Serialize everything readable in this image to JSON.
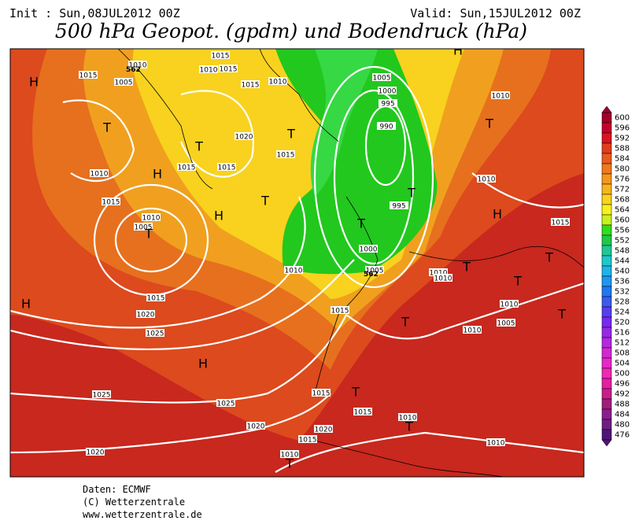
{
  "header": {
    "init": "Init : Sun,08JUL2012 00Z",
    "valid": "Valid: Sun,15JUL2012 00Z",
    "title": "500 hPa Geopot. (gpdm) und Bodendruck (hPa)"
  },
  "map": {
    "isobar_labels": [
      "1010",
      "1015",
      "1005",
      "1010",
      "1015",
      "1015",
      "1015",
      "1010",
      "1005",
      "1000",
      "995",
      "990",
      "1010",
      "1020",
      "1015",
      "1015",
      "1015",
      "1010",
      "1015",
      "1010",
      "1005",
      "995",
      "1010",
      "1015",
      "1000",
      "1005",
      "1010",
      "1010",
      "1010",
      "1015",
      "1020",
      "1015",
      "1010",
      "1005",
      "1025",
      "1010",
      "1025",
      "1025",
      "1015",
      "1015",
      "1010",
      "1020",
      "1020",
      "1015",
      "1010",
      "1020",
      "1010"
    ],
    "contour_labels": [
      "562",
      "562"
    ],
    "centers": [
      "H",
      "H",
      "H",
      "H",
      "H",
      "H",
      "H",
      "T",
      "T",
      "T",
      "T",
      "T",
      "T",
      "T",
      "T",
      "T",
      "T",
      "T",
      "T",
      "T",
      "T",
      "T",
      "T"
    ]
  },
  "colorbar": {
    "values": [
      600,
      596,
      592,
      588,
      584,
      580,
      576,
      572,
      568,
      564,
      560,
      556,
      552,
      548,
      544,
      540,
      536,
      532,
      528,
      524,
      520,
      516,
      512,
      508,
      504,
      500,
      496,
      492,
      488,
      484,
      480,
      476
    ]
  },
  "footer": {
    "lines": [
      "Daten: ECMWF",
      "(C) Wetterzentrale",
      "www.wetterzentrale.de"
    ]
  }
}
